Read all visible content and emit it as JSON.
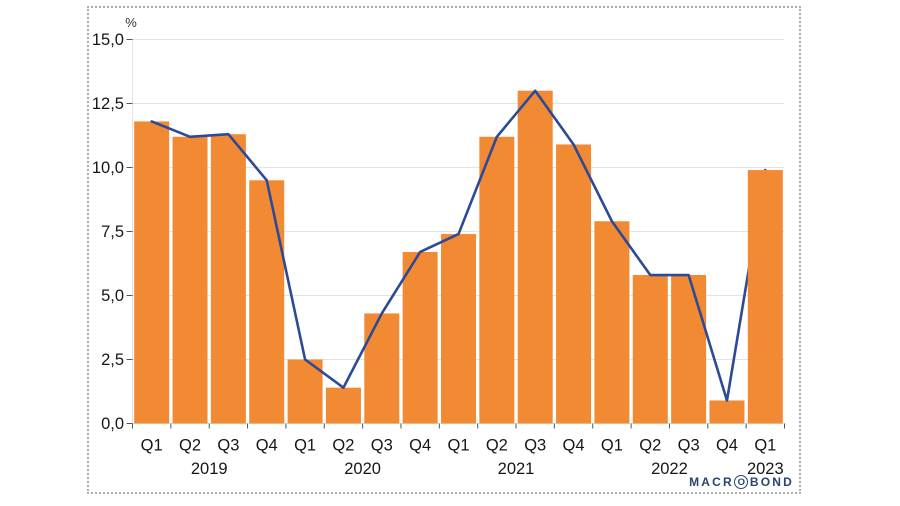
{
  "branding": {
    "text_before_o": "MACR",
    "o": "O",
    "text_after_o": "BOND",
    "color": "#2a4470"
  },
  "chart_data": {
    "type": "bar",
    "overlay_line_same_series": true,
    "line_ends_behind_last_bar": true,
    "title": "",
    "unit_label": "%",
    "categories": [
      "2019 Q1",
      "2019 Q2",
      "2019 Q3",
      "2019 Q4",
      "2020 Q1",
      "2020 Q2",
      "2020 Q3",
      "2020 Q4",
      "2021 Q1",
      "2021 Q2",
      "2021 Q3",
      "2021 Q4",
      "2022 Q1",
      "2022 Q2",
      "2022 Q3",
      "2022 Q4",
      "2023 Q1"
    ],
    "values": [
      11.8,
      11.2,
      11.3,
      9.5,
      2.5,
      1.4,
      4.3,
      6.7,
      7.4,
      11.2,
      13.0,
      10.9,
      7.9,
      5.8,
      5.8,
      0.9,
      9.9
    ],
    "ylim": [
      0,
      15
    ],
    "ytick_step": 2.5,
    "ytick_labels": [
      "0,0",
      "2,5",
      "5,0",
      "7,5",
      "10,0",
      "12,5",
      "15,0"
    ],
    "x_axis": {
      "quarter_labels": [
        "Q1",
        "Q2",
        "Q3",
        "Q4",
        "Q1",
        "Q2",
        "Q3",
        "Q4",
        "Q1",
        "Q2",
        "Q3",
        "Q4",
        "Q1",
        "Q2",
        "Q3",
        "Q4",
        "Q1"
      ],
      "year_labels": [
        "2019",
        "2020",
        "2021",
        "2022",
        "2023"
      ],
      "year_spans": [
        [
          0,
          3
        ],
        [
          4,
          7
        ],
        [
          8,
          11
        ],
        [
          12,
          15
        ],
        [
          16,
          16
        ]
      ]
    },
    "grid": true,
    "legend": false,
    "bar_color": "#f28a33",
    "line_color": "#2d4a96",
    "grid_color": "#e3e3e3",
    "tick_color": "#555555",
    "text_color": "#161616"
  }
}
